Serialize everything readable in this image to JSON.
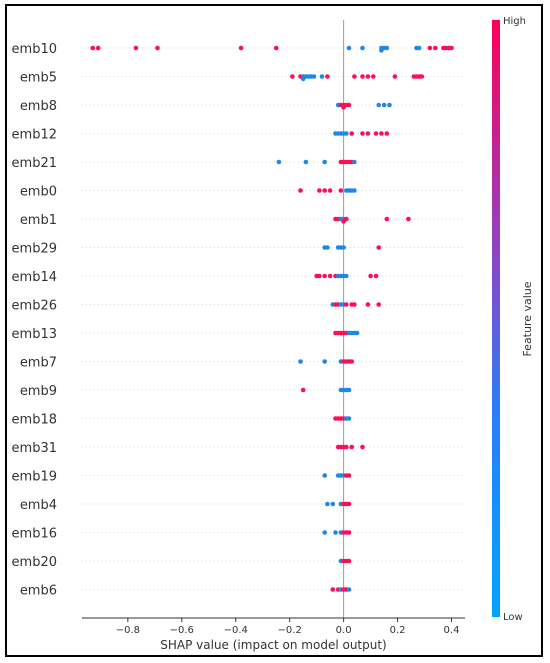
{
  "chart_data": {
    "type": "scatter",
    "subtype": "shap-beeswarm",
    "title": "",
    "xlabel": "SHAP value (impact on model output)",
    "ylabel": "",
    "xlim": [
      -0.97,
      0.45
    ],
    "xticks": [
      -0.8,
      -0.6,
      -0.4,
      -0.2,
      0.0,
      0.2,
      0.4
    ],
    "xtick_labels": [
      "−0.8",
      "−0.6",
      "−0.4",
      "−0.2",
      "0.0",
      "0.2",
      "0.4"
    ],
    "colorbar": {
      "label": "Feature value",
      "high_label": "High",
      "low_label": "Low",
      "low_color": "#1e88e5",
      "high_color": "#ff0d57"
    },
    "grid": false,
    "features": [
      {
        "name": "emb10",
        "points": [
          [
            -0.93,
            1
          ],
          [
            -0.91,
            1
          ],
          [
            -0.77,
            1
          ],
          [
            -0.69,
            1
          ],
          [
            -0.38,
            1
          ],
          [
            -0.25,
            1
          ],
          [
            0.02,
            0
          ],
          [
            0.07,
            0
          ],
          [
            0.14,
            0
          ],
          [
            0.14,
            0
          ],
          [
            0.15,
            0
          ],
          [
            0.16,
            0
          ],
          [
            0.27,
            0
          ],
          [
            0.28,
            0
          ],
          [
            0.32,
            1
          ],
          [
            0.34,
            1
          ],
          [
            0.37,
            1
          ],
          [
            0.38,
            1
          ],
          [
            0.39,
            1
          ],
          [
            0.4,
            1
          ]
        ]
      },
      {
        "name": "emb5",
        "points": [
          [
            -0.19,
            1
          ],
          [
            -0.16,
            1
          ],
          [
            -0.15,
            0
          ],
          [
            -0.15,
            0
          ],
          [
            -0.14,
            0
          ],
          [
            -0.13,
            0
          ],
          [
            -0.12,
            0
          ],
          [
            -0.11,
            0
          ],
          [
            -0.08,
            0
          ],
          [
            -0.06,
            1
          ],
          [
            0.04,
            1
          ],
          [
            0.07,
            1
          ],
          [
            0.09,
            1
          ],
          [
            0.11,
            1
          ],
          [
            0.19,
            1
          ],
          [
            0.26,
            1
          ],
          [
            0.27,
            1
          ],
          [
            0.28,
            1
          ],
          [
            0.29,
            1
          ]
        ]
      },
      {
        "name": "emb8",
        "points": [
          [
            -0.02,
            0
          ],
          [
            -0.01,
            1
          ],
          [
            0.0,
            1
          ],
          [
            0.0,
            1
          ],
          [
            0.01,
            1
          ],
          [
            0.02,
            1
          ],
          [
            0.13,
            0
          ],
          [
            0.15,
            0
          ],
          [
            0.17,
            0
          ]
        ]
      },
      {
        "name": "emb12",
        "points": [
          [
            -0.03,
            0
          ],
          [
            -0.02,
            0
          ],
          [
            -0.01,
            0
          ],
          [
            0.0,
            0
          ],
          [
            0.01,
            0
          ],
          [
            0.03,
            1
          ],
          [
            0.07,
            1
          ],
          [
            0.09,
            1
          ],
          [
            0.12,
            1
          ],
          [
            0.14,
            1
          ],
          [
            0.16,
            1
          ]
        ]
      },
      {
        "name": "emb21",
        "points": [
          [
            -0.24,
            0
          ],
          [
            -0.14,
            0
          ],
          [
            -0.07,
            0
          ],
          [
            -0.01,
            1
          ],
          [
            0.0,
            1
          ],
          [
            0.01,
            1
          ],
          [
            0.02,
            1
          ],
          [
            0.03,
            1
          ],
          [
            0.04,
            0
          ]
        ]
      },
      {
        "name": "emb0",
        "points": [
          [
            -0.16,
            1
          ],
          [
            -0.09,
            1
          ],
          [
            -0.07,
            1
          ],
          [
            -0.05,
            1
          ],
          [
            -0.01,
            1
          ],
          [
            0.01,
            0
          ],
          [
            0.02,
            0
          ],
          [
            0.03,
            0
          ],
          [
            0.04,
            0
          ]
        ]
      },
      {
        "name": "emb1",
        "points": [
          [
            -0.03,
            1
          ],
          [
            -0.02,
            1
          ],
          [
            -0.01,
            0
          ],
          [
            0.0,
            0
          ],
          [
            0.0,
            1
          ],
          [
            0.01,
            1
          ],
          [
            0.16,
            1
          ],
          [
            0.24,
            1
          ]
        ]
      },
      {
        "name": "emb29",
        "points": [
          [
            -0.07,
            0
          ],
          [
            -0.06,
            0
          ],
          [
            -0.02,
            0
          ],
          [
            -0.01,
            0
          ],
          [
            0.0,
            0
          ],
          [
            0.13,
            1
          ]
        ]
      },
      {
        "name": "emb14",
        "points": [
          [
            -0.1,
            1
          ],
          [
            -0.09,
            1
          ],
          [
            -0.07,
            1
          ],
          [
            -0.05,
            1
          ],
          [
            -0.03,
            1
          ],
          [
            -0.02,
            0
          ],
          [
            -0.01,
            0
          ],
          [
            0.0,
            0
          ],
          [
            0.01,
            0
          ],
          [
            0.1,
            1
          ],
          [
            0.12,
            1
          ]
        ]
      },
      {
        "name": "emb26",
        "points": [
          [
            -0.04,
            0
          ],
          [
            -0.03,
            1
          ],
          [
            -0.02,
            1
          ],
          [
            -0.01,
            0
          ],
          [
            0.0,
            0
          ],
          [
            0.01,
            1
          ],
          [
            0.03,
            1
          ],
          [
            0.04,
            1
          ],
          [
            0.09,
            1
          ],
          [
            0.13,
            1
          ]
        ]
      },
      {
        "name": "emb13",
        "points": [
          [
            -0.03,
            1
          ],
          [
            -0.02,
            1
          ],
          [
            -0.01,
            1
          ],
          [
            0.0,
            1
          ],
          [
            0.01,
            1
          ],
          [
            0.02,
            0
          ],
          [
            0.03,
            0
          ],
          [
            0.04,
            0
          ],
          [
            0.05,
            0
          ]
        ]
      },
      {
        "name": "emb7",
        "points": [
          [
            -0.16,
            0
          ],
          [
            -0.07,
            0
          ],
          [
            -0.01,
            0
          ],
          [
            0.0,
            1
          ],
          [
            0.01,
            1
          ],
          [
            0.02,
            1
          ],
          [
            0.03,
            1
          ]
        ]
      },
      {
        "name": "emb9",
        "points": [
          [
            -0.15,
            1
          ],
          [
            -0.01,
            0
          ],
          [
            0.0,
            0
          ],
          [
            0.01,
            0
          ],
          [
            0.02,
            0
          ]
        ]
      },
      {
        "name": "emb18",
        "points": [
          [
            -0.03,
            1
          ],
          [
            -0.02,
            1
          ],
          [
            -0.01,
            1
          ],
          [
            0.0,
            1
          ],
          [
            0.01,
            0
          ],
          [
            0.02,
            0
          ]
        ]
      },
      {
        "name": "emb31",
        "points": [
          [
            -0.02,
            1
          ],
          [
            -0.01,
            1
          ],
          [
            0.0,
            1
          ],
          [
            0.01,
            1
          ],
          [
            0.03,
            1
          ],
          [
            0.07,
            1
          ]
        ]
      },
      {
        "name": "emb19",
        "points": [
          [
            -0.07,
            0
          ],
          [
            -0.02,
            0
          ],
          [
            -0.01,
            0
          ],
          [
            0.0,
            0
          ],
          [
            0.01,
            1
          ],
          [
            0.02,
            1
          ]
        ]
      },
      {
        "name": "emb4",
        "points": [
          [
            -0.06,
            0
          ],
          [
            -0.04,
            0
          ],
          [
            -0.01,
            0
          ],
          [
            0.0,
            1
          ],
          [
            0.01,
            1
          ],
          [
            0.02,
            1
          ]
        ]
      },
      {
        "name": "emb16",
        "points": [
          [
            -0.07,
            0
          ],
          [
            -0.03,
            0
          ],
          [
            -0.01,
            0
          ],
          [
            0.0,
            1
          ],
          [
            0.01,
            1
          ],
          [
            0.02,
            1
          ]
        ]
      },
      {
        "name": "emb20",
        "points": [
          [
            -0.01,
            0
          ],
          [
            0.0,
            1
          ],
          [
            0.01,
            1
          ],
          [
            0.02,
            1
          ]
        ]
      },
      {
        "name": "emb6",
        "points": [
          [
            -0.04,
            1
          ],
          [
            -0.02,
            1
          ],
          [
            -0.01,
            0
          ],
          [
            0.0,
            1
          ],
          [
            0.01,
            1
          ],
          [
            0.02,
            0
          ]
        ]
      }
    ]
  }
}
